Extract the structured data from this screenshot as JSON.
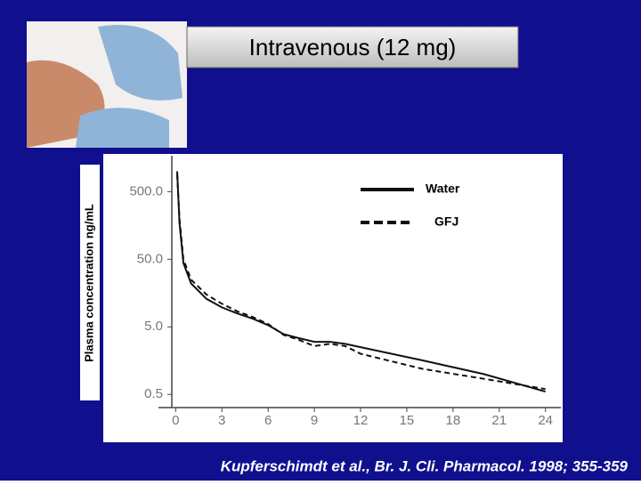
{
  "chart_data": {
    "type": "line",
    "title": "Intravenous (12 mg)",
    "y_label": "Plasma concentration ng/mL",
    "source": "Kupferschimdt et al., Br. J. Cli. Pharmacol.  1998; 355-359",
    "log_y": true,
    "legend": "top-right",
    "x": [
      0.1,
      0.25,
      0.5,
      1,
      2,
      3,
      4,
      5,
      6,
      7,
      8,
      9,
      10,
      11,
      12,
      16,
      20,
      24
    ],
    "series": [
      {
        "name": "Water",
        "color": "#111111",
        "dash": false,
        "values": [
          1000,
          173,
          44,
          22,
          13,
          9.7,
          7.9,
          6.6,
          5.3,
          3.9,
          3.4,
          3.0,
          3.0,
          2.8,
          2.5,
          1.6,
          1.0,
          0.55
        ]
      },
      {
        "name": "GFJ",
        "color": "#111111",
        "dash": true,
        "values": [
          900,
          200,
          50,
          25,
          15,
          11,
          8.5,
          7,
          5.5,
          3.8,
          3.2,
          2.6,
          2.8,
          2.6,
          2.0,
          1.2,
          0.85,
          0.6
        ]
      }
    ],
    "xlim": [
      -1,
      25
    ],
    "xticks": [
      0,
      3,
      6,
      9,
      12,
      15,
      18,
      21,
      24
    ],
    "ylim": [
      0.35,
      1700
    ],
    "yticks": [
      0.5,
      {
        "value": 5,
        "label": "5.0"
      },
      {
        "value": 50,
        "label": "50.0"
      },
      {
        "value": 500,
        "label": "500.0"
      }
    ]
  }
}
